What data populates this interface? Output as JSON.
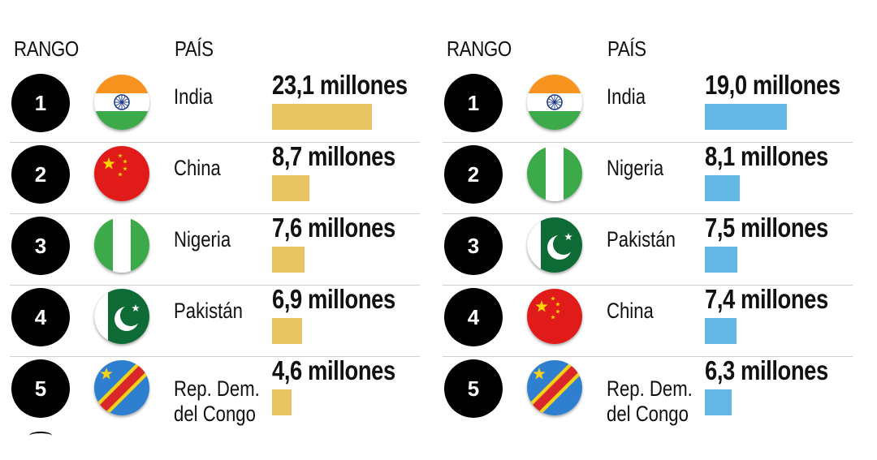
{
  "left": {
    "rank_header": "RANGO",
    "country_header": "PAÍS",
    "bar_color": "#E8C562",
    "rows": [
      {
        "rank": "1",
        "country": "India",
        "country_line2": "",
        "flag_icon": "india-flag-icon",
        "value_label": "23,1 millones",
        "value": 23.1
      },
      {
        "rank": "2",
        "country": "China",
        "country_line2": "",
        "flag_icon": "china-flag-icon",
        "value_label": "8,7 millones",
        "value": 8.7
      },
      {
        "rank": "3",
        "country": "Nigeria",
        "country_line2": "",
        "flag_icon": "nigeria-flag-icon",
        "value_label": "7,6 millones",
        "value": 7.6
      },
      {
        "rank": "4",
        "country": "Pakistán",
        "country_line2": "",
        "flag_icon": "pakistan-flag-icon",
        "value_label": "6,9 millones",
        "value": 6.9
      },
      {
        "rank": "5",
        "country": "Rep. Dem.",
        "country_line2": "del Congo",
        "flag_icon": "drc-flag-icon",
        "value_label": "4,6 millones",
        "value": 4.6
      }
    ]
  },
  "right": {
    "rank_header": "RANGO",
    "country_header": "PAÍS",
    "bar_color": "#64B8E6",
    "rows": [
      {
        "rank": "1",
        "country": "India",
        "country_line2": "",
        "flag_icon": "india-flag-icon",
        "value_label": "19,0 millones",
        "value": 19.0
      },
      {
        "rank": "2",
        "country": "Nigeria",
        "country_line2": "",
        "flag_icon": "nigeria-flag-icon",
        "value_label": "8,1 millones",
        "value": 8.1
      },
      {
        "rank": "3",
        "country": "Pakistán",
        "country_line2": "",
        "flag_icon": "pakistan-flag-icon",
        "value_label": "7,5 millones",
        "value": 7.5
      },
      {
        "rank": "4",
        "country": "China",
        "country_line2": "",
        "flag_icon": "china-flag-icon",
        "value_label": "7,4 millones",
        "value": 7.4
      },
      {
        "rank": "5",
        "country": "Rep. Dem.",
        "country_line2": "del Congo",
        "flag_icon": "drc-flag-icon",
        "value_label": "6,3 millones",
        "value": 6.3
      }
    ]
  },
  "chart_data": [
    {
      "type": "bar",
      "categories": [
        "India",
        "China",
        "Nigeria",
        "Pakistán",
        "Rep. Dem. del Congo"
      ],
      "values": [
        23.1,
        8.7,
        7.6,
        6.9,
        4.6
      ],
      "value_labels": [
        "23,1 millones",
        "8,7 millones",
        "7,6 millones",
        "6,9 millones",
        "4,6 millones"
      ],
      "ranks": [
        1,
        2,
        3,
        4,
        5
      ],
      "headers": [
        "RANGO",
        "PAÍS"
      ],
      "orientation": "horizontal",
      "color": "#E8C562"
    },
    {
      "type": "bar",
      "categories": [
        "India",
        "Nigeria",
        "Pakistán",
        "China",
        "Rep. Dem. del Congo"
      ],
      "values": [
        19.0,
        8.1,
        7.5,
        7.4,
        6.3
      ],
      "value_labels": [
        "19,0 millones",
        "8,1 millones",
        "7,5 millones",
        "7,4 millones",
        "6,3 millones"
      ],
      "ranks": [
        1,
        2,
        3,
        4,
        5
      ],
      "headers": [
        "RANGO",
        "PAÍS"
      ],
      "orientation": "horizontal",
      "color": "#64B8E6"
    }
  ]
}
